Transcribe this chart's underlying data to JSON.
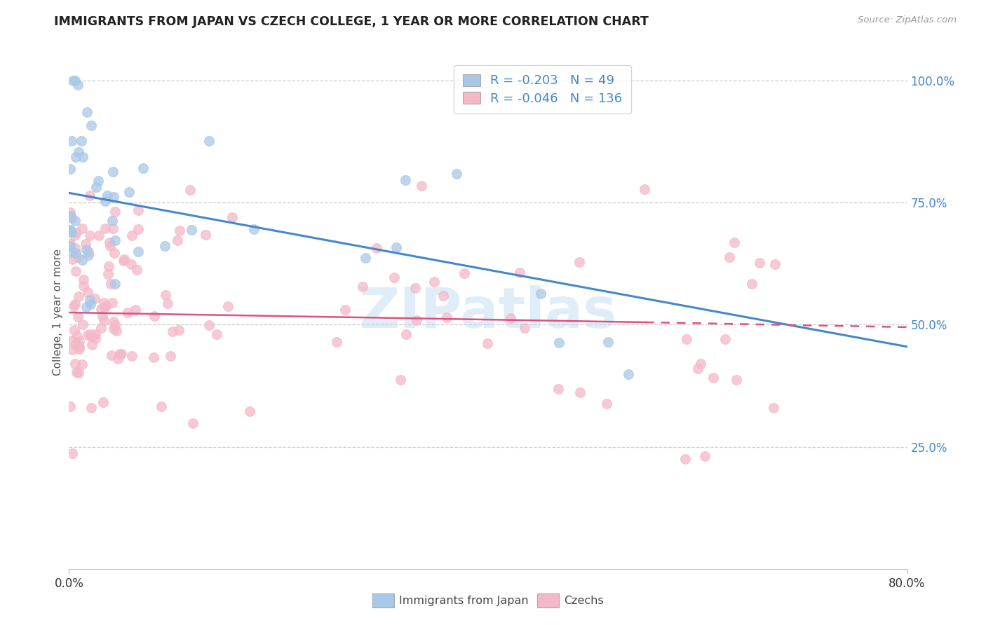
{
  "title": "IMMIGRANTS FROM JAPAN VS CZECH COLLEGE, 1 YEAR OR MORE CORRELATION CHART",
  "source": "Source: ZipAtlas.com",
  "ylabel": "College, 1 year or more",
  "legend_japan_r": "-0.203",
  "legend_japan_n": "49",
  "legend_czech_r": "-0.046",
  "legend_czech_n": "136",
  "legend_label_japan": "Immigrants from Japan",
  "legend_label_czech": "Czechs",
  "blue_color": "#a8c8e8",
  "pink_color": "#f4b8c8",
  "blue_line_color": "#4488cc",
  "pink_line_color": "#e05080",
  "watermark": "ZIPatlas",
  "grid_color": "#cccccc",
  "title_color": "#222222",
  "source_color": "#999999",
  "right_tick_color": "#4488cc",
  "japan_line_x0": 0.0,
  "japan_line_y0": 0.77,
  "japan_line_x1": 0.8,
  "japan_line_y1": 0.455,
  "czech_line_x0": 0.0,
  "czech_line_y0": 0.525,
  "czech_line_x1_solid": 0.55,
  "czech_line_y1_solid": 0.505,
  "czech_line_x1_dash": 0.8,
  "czech_line_y1_dash": 0.495,
  "xlim": [
    0.0,
    0.8
  ],
  "ylim": [
    0.0,
    1.05
  ],
  "ytick_positions": [
    0.25,
    0.5,
    0.75,
    1.0
  ],
  "ytick_labels": [
    "25.0%",
    "50.0%",
    "75.0%",
    "100.0%"
  ],
  "xtick_positions": [
    0.0,
    0.8
  ],
  "xtick_labels": [
    "0.0%",
    "80.0%"
  ],
  "scatter_size": 100,
  "scatter_alpha": 0.75,
  "scatter_linewidth": 0.8
}
